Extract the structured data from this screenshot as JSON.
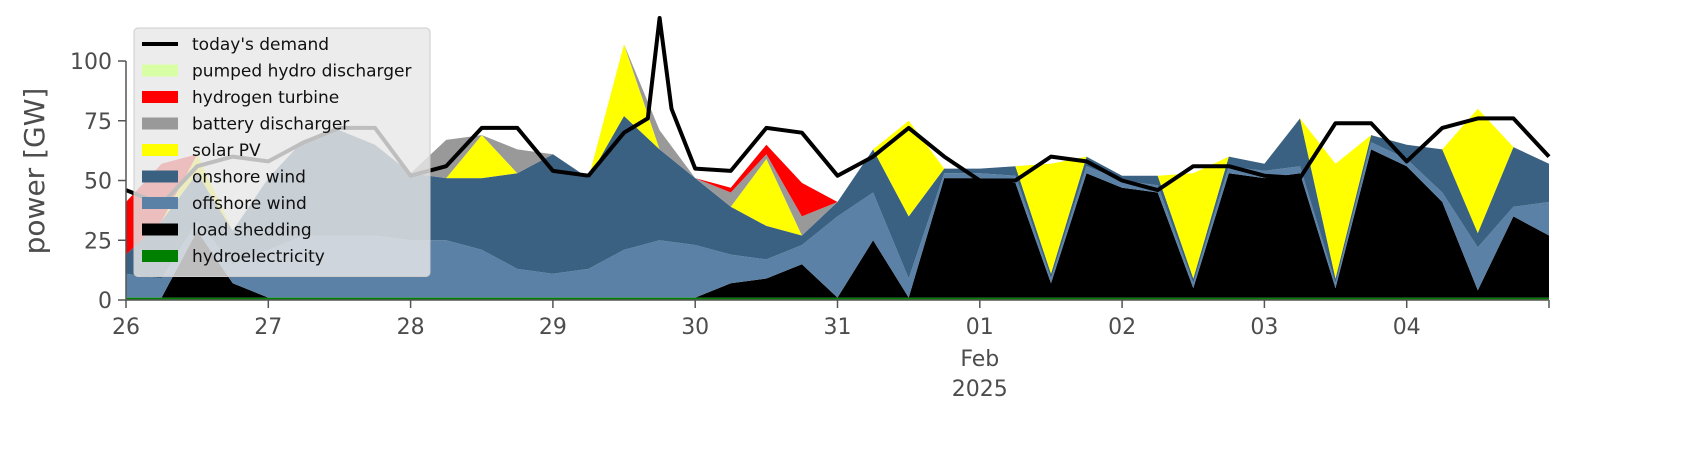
{
  "chart_data": {
    "type": "area",
    "ylabel": "power [GW]",
    "ylim": [
      0,
      118
    ],
    "xlim": [
      "2025-01-26T00:00",
      "2025-02-05T00:00"
    ],
    "yticks": [
      0,
      25,
      50,
      75,
      100
    ],
    "xticks": [
      {
        "date": "2025-01-26",
        "label": "26"
      },
      {
        "date": "2025-01-27",
        "label": "27"
      },
      {
        "date": "2025-01-28",
        "label": "28"
      },
      {
        "date": "2025-01-29",
        "label": "29"
      },
      {
        "date": "2025-01-30",
        "label": "30"
      },
      {
        "date": "2025-01-31",
        "label": "31"
      },
      {
        "date": "2025-02-01",
        "label": "01",
        "sublabel": "Feb",
        "sublabel2": "2025"
      },
      {
        "date": "2025-02-02",
        "label": "02"
      },
      {
        "date": "2025-02-03",
        "label": "03"
      },
      {
        "date": "2025-02-04",
        "label": "04"
      }
    ],
    "grid": false,
    "legend_position": "top-left",
    "x": [
      "2025-01-26T00:00",
      "2025-01-26T06:00",
      "2025-01-26T12:00",
      "2025-01-26T18:00",
      "2025-01-27T00:00",
      "2025-01-27T06:00",
      "2025-01-27T12:00",
      "2025-01-27T18:00",
      "2025-01-28T00:00",
      "2025-01-28T06:00",
      "2025-01-28T12:00",
      "2025-01-28T18:00",
      "2025-01-29T00:00",
      "2025-01-29T06:00",
      "2025-01-29T12:00",
      "2025-01-29T18:00",
      "2025-01-30T00:00",
      "2025-01-30T06:00",
      "2025-01-30T12:00",
      "2025-01-30T18:00",
      "2025-01-31T00:00",
      "2025-01-31T06:00",
      "2025-01-31T12:00",
      "2025-01-31T18:00",
      "2025-02-01T00:00",
      "2025-02-01T06:00",
      "2025-02-01T12:00",
      "2025-02-01T18:00",
      "2025-02-02T00:00",
      "2025-02-02T06:00",
      "2025-02-02T12:00",
      "2025-02-02T18:00",
      "2025-02-03T00:00",
      "2025-02-03T06:00",
      "2025-02-03T12:00",
      "2025-02-03T18:00",
      "2025-02-04T00:00",
      "2025-02-04T06:00",
      "2025-02-04T12:00",
      "2025-02-04T18:00",
      "2025-02-05T00:00"
    ],
    "series": [
      {
        "name": "hydroelectricity",
        "color": "#008000",
        "values": [
          1,
          1,
          1,
          1,
          1,
          1,
          1,
          1,
          1,
          1,
          1,
          1,
          1,
          1,
          1,
          1,
          1,
          1,
          1,
          1,
          1,
          1,
          1,
          1,
          1,
          1,
          1,
          1,
          1,
          1,
          1,
          1,
          1,
          1,
          1,
          1,
          1,
          1,
          1,
          1,
          1
        ]
      },
      {
        "name": "load shedding",
        "color": "#000000",
        "values": [
          0,
          0,
          28,
          6,
          0,
          0,
          0,
          0,
          0,
          0,
          0,
          0,
          0,
          0,
          0,
          0,
          0,
          6,
          8,
          14,
          0,
          24,
          0,
          50,
          50,
          48,
          6,
          52,
          46,
          44,
          4,
          52,
          50,
          52,
          4,
          62,
          55,
          40,
          3,
          34,
          26
        ]
      },
      {
        "name": "offshore wind",
        "color": "#5b82a6",
        "values": [
          10,
          8,
          4,
          8,
          20,
          26,
          26,
          26,
          24,
          24,
          20,
          12,
          10,
          12,
          20,
          24,
          22,
          12,
          8,
          8,
          34,
          20,
          8,
          2,
          2,
          3,
          2,
          3,
          3,
          3,
          2,
          3,
          3,
          3,
          2,
          3,
          3,
          4,
          18,
          4,
          14
        ]
      },
      {
        "name": "onshore wind",
        "color": "#3b6182",
        "values": [
          8,
          24,
          20,
          14,
          30,
          40,
          44,
          38,
          28,
          26,
          30,
          40,
          50,
          38,
          56,
          38,
          28,
          20,
          14,
          4,
          6,
          18,
          26,
          2,
          2,
          4,
          2,
          4,
          2,
          4,
          2,
          4,
          3,
          20,
          2,
          3,
          6,
          18,
          6,
          25,
          16
        ]
      },
      {
        "name": "solar PV",
        "color": "#ffff00",
        "values": [
          0,
          0,
          8,
          0,
          0,
          0,
          0,
          0,
          0,
          0,
          18,
          0,
          0,
          0,
          30,
          0,
          0,
          0,
          28,
          0,
          0,
          0,
          40,
          0,
          0,
          0,
          46,
          0,
          0,
          0,
          44,
          0,
          0,
          0,
          48,
          0,
          0,
          0,
          52,
          0,
          0
        ]
      },
      {
        "name": "battery discharger",
        "color": "#999999",
        "values": [
          0,
          0,
          0,
          0,
          0,
          0,
          0,
          0,
          0,
          16,
          0,
          10,
          0,
          0,
          0,
          8,
          0,
          6,
          2,
          8,
          0,
          0,
          0,
          0,
          0,
          0,
          0,
          0,
          0,
          0,
          0,
          0,
          0,
          0,
          0,
          0,
          0,
          0,
          0,
          0,
          0
        ]
      },
      {
        "name": "hydrogen turbine",
        "color": "#ff0000",
        "values": [
          22,
          24,
          0,
          0,
          0,
          0,
          0,
          0,
          0,
          0,
          0,
          0,
          0,
          0,
          0,
          0,
          0,
          2,
          4,
          14,
          0,
          0,
          0,
          0,
          0,
          0,
          0,
          0,
          0,
          0,
          0,
          0,
          0,
          0,
          0,
          0,
          0,
          0,
          0,
          0,
          0
        ]
      },
      {
        "name": "pumped hydro discharger",
        "color": "#d9ffa6",
        "values": [
          0,
          0,
          0,
          0,
          0,
          0,
          0,
          0,
          0,
          0,
          0,
          0,
          0,
          0,
          0,
          0,
          0,
          0,
          0,
          0,
          0,
          0,
          0,
          0,
          0,
          0,
          0,
          0,
          0,
          0,
          0,
          0,
          0,
          0,
          0,
          0,
          0,
          0,
          0,
          0,
          0
        ]
      }
    ],
    "demand": {
      "name": "today's demand",
      "color": "#000000",
      "x": [
        "2025-01-26T00:00",
        "2025-01-26T06:00",
        "2025-01-26T12:00",
        "2025-01-26T18:00",
        "2025-01-27T00:00",
        "2025-01-27T06:00",
        "2025-01-27T12:00",
        "2025-01-27T18:00",
        "2025-01-28T00:00",
        "2025-01-28T06:00",
        "2025-01-28T12:00",
        "2025-01-28T18:00",
        "2025-01-29T00:00",
        "2025-01-29T06:00",
        "2025-01-29T12:00",
        "2025-01-29T16:00",
        "2025-01-29T18:00",
        "2025-01-29T20:00",
        "2025-01-30T00:00",
        "2025-01-30T06:00",
        "2025-01-30T12:00",
        "2025-01-30T18:00",
        "2025-01-31T00:00",
        "2025-01-31T06:00",
        "2025-01-31T12:00",
        "2025-01-31T18:00",
        "2025-02-01T00:00",
        "2025-02-01T06:00",
        "2025-02-01T12:00",
        "2025-02-01T18:00",
        "2025-02-02T00:00",
        "2025-02-02T06:00",
        "2025-02-02T12:00",
        "2025-02-02T18:00",
        "2025-02-03T00:00",
        "2025-02-03T06:00",
        "2025-02-03T12:00",
        "2025-02-03T18:00",
        "2025-02-04T00:00",
        "2025-02-04T06:00",
        "2025-02-04T12:00",
        "2025-02-04T18:00",
        "2025-02-05T00:00"
      ],
      "values": [
        46,
        40,
        56,
        60,
        58,
        66,
        72,
        72,
        52,
        56,
        72,
        72,
        54,
        52,
        70,
        76,
        122,
        80,
        55,
        54,
        72,
        70,
        52,
        60,
        72,
        60,
        50,
        50,
        60,
        58,
        50,
        46,
        56,
        56,
        52,
        51,
        74,
        74,
        58,
        72,
        76,
        76,
        60
      ]
    }
  }
}
